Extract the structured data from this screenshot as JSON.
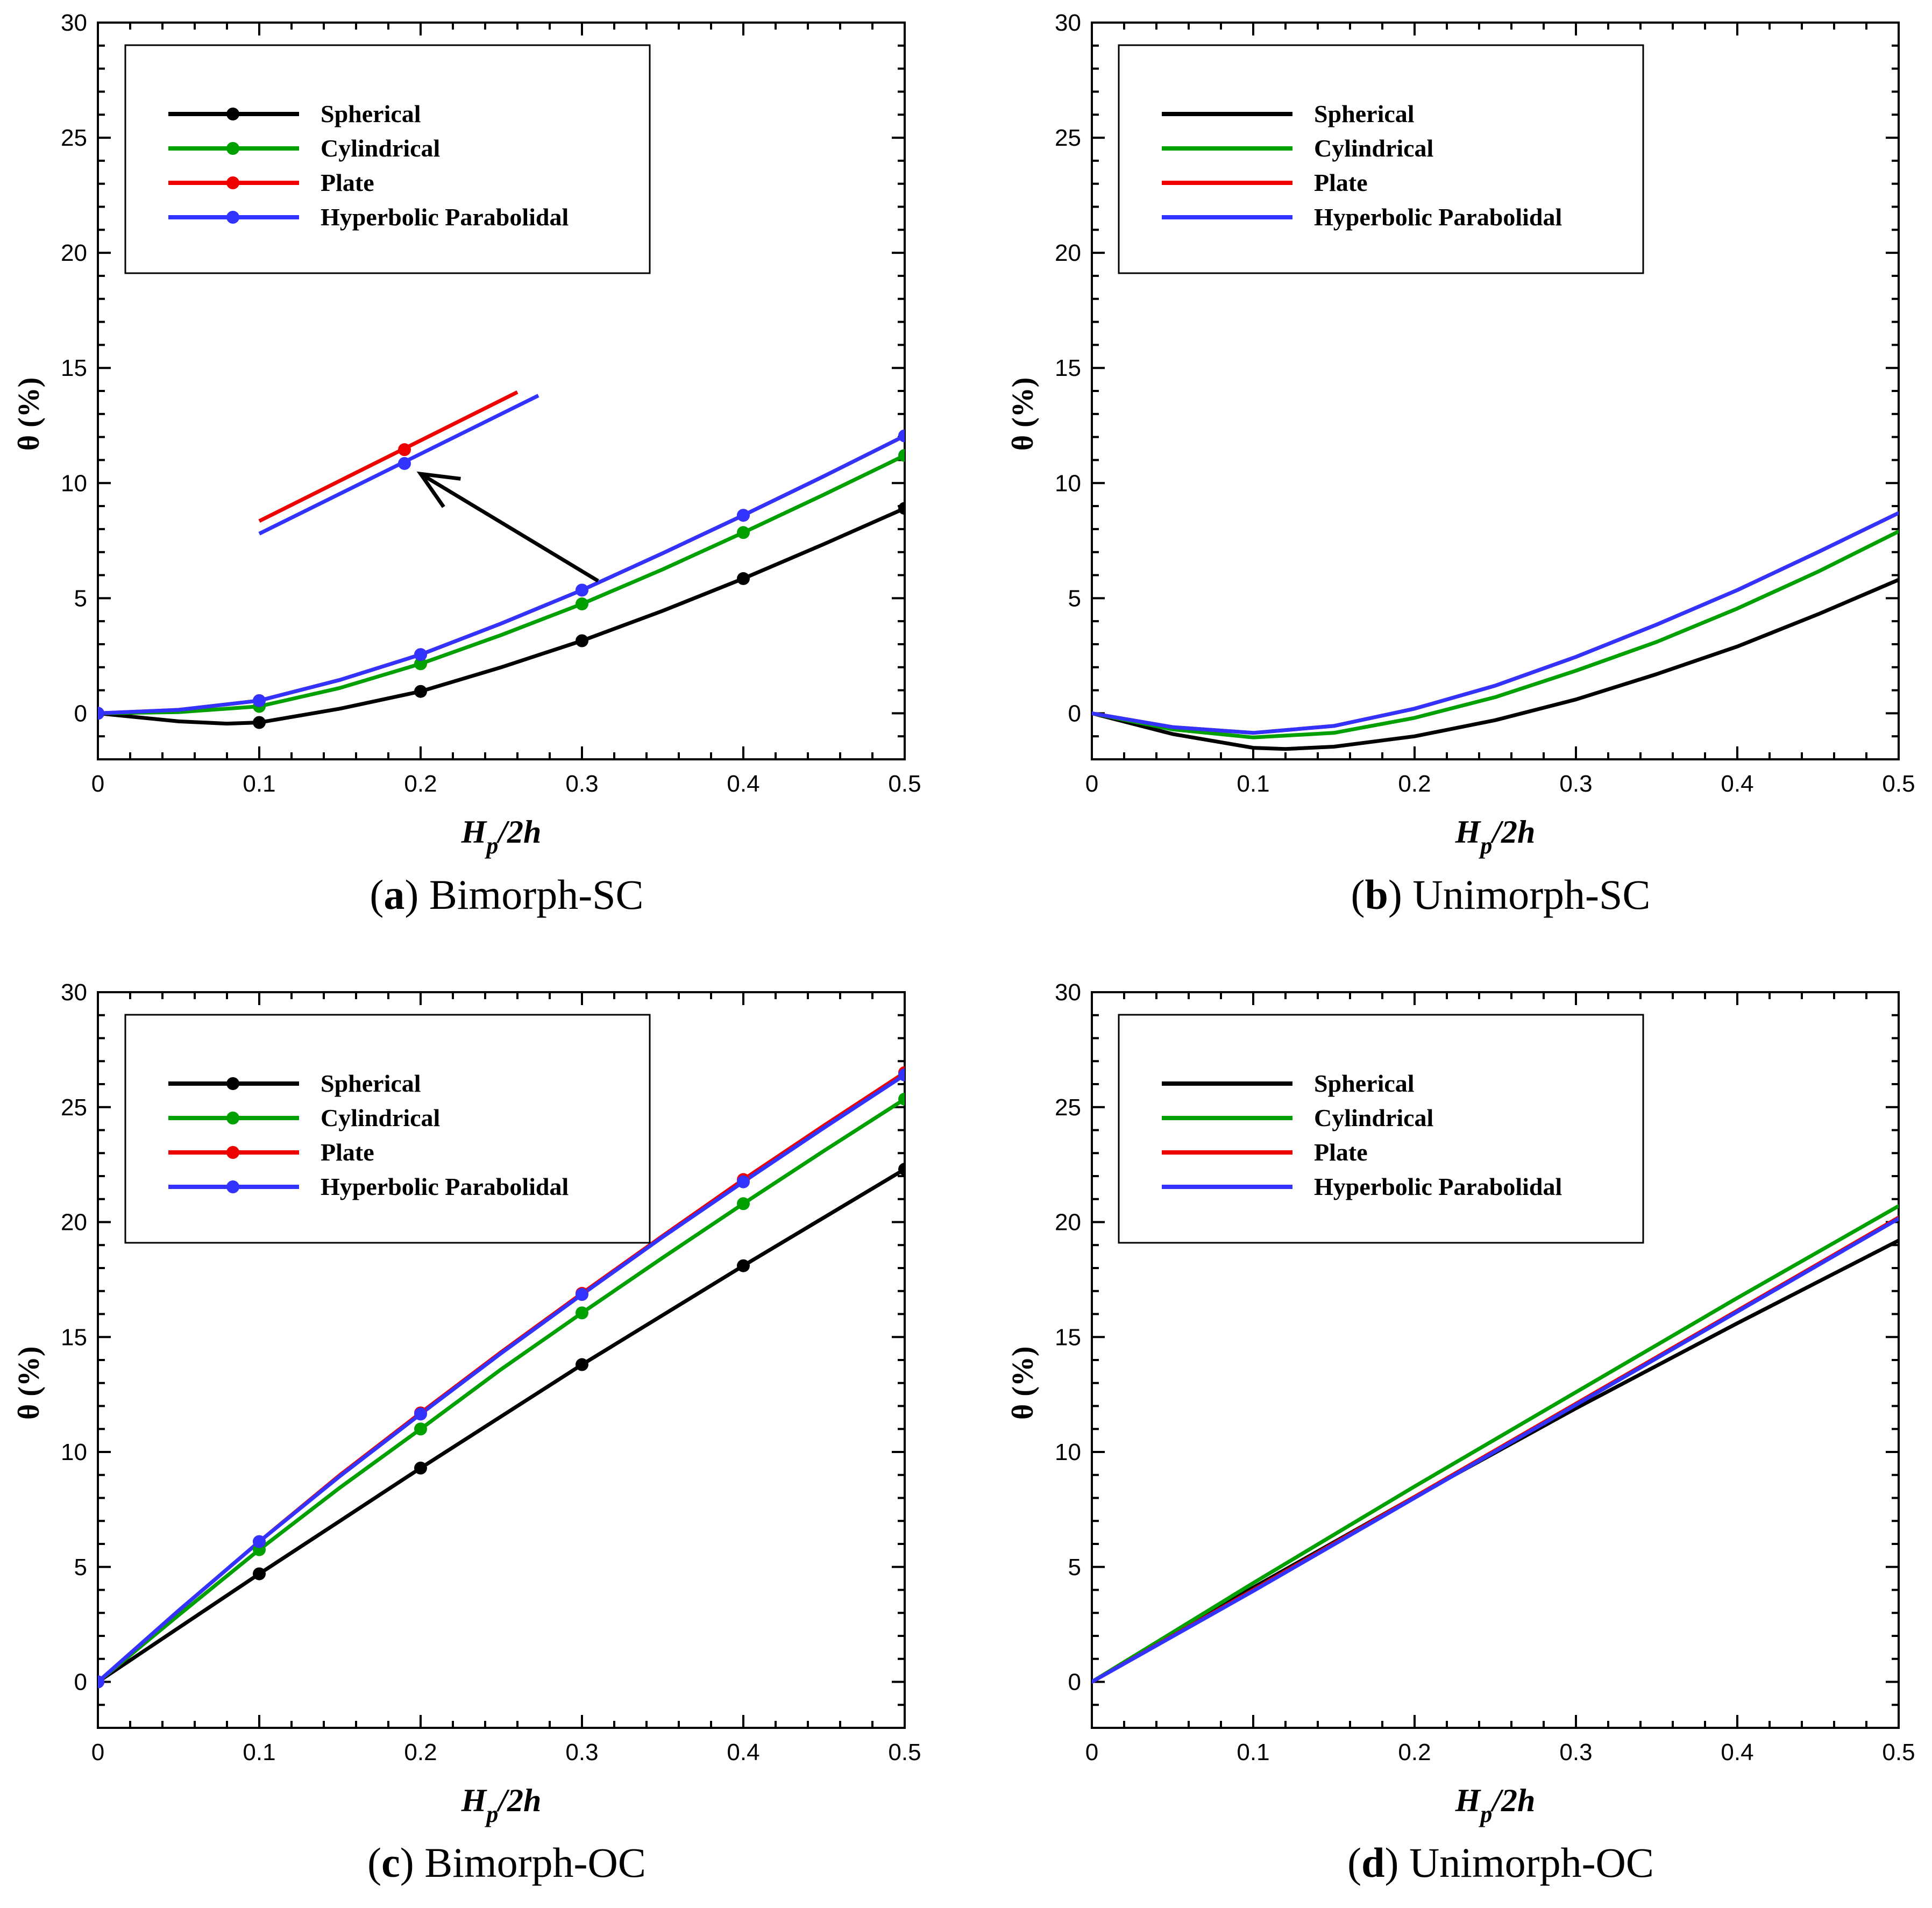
{
  "colors": {
    "Spherical": "#000000",
    "Cylindrical": "#00a000",
    "Plate": "#ee0000",
    "Hyperbolic Parabolidal": "#3333ff"
  },
  "chart_data": [
    {
      "type": "line",
      "caption_letter": "a",
      "caption_text": "Bimorph-SC",
      "xlabel_main": "H",
      "xlabel_sub": "p",
      "xlabel_tail": "/2h",
      "ylabel": "θ (%)",
      "xlim": [
        0,
        0.5
      ],
      "ylim": [
        -2,
        30
      ],
      "xticks": [
        "0",
        "0.1",
        "0.2",
        "0.3",
        "0.4",
        "0.5"
      ],
      "yticks": [
        "0",
        "5",
        "10",
        "15",
        "20",
        "25",
        "30"
      ],
      "markers": true,
      "x": [
        0,
        0.1,
        0.2,
        0.3,
        0.4,
        0.5
      ],
      "series": [
        {
          "name": "Spherical",
          "values": [
            0,
            -0.4,
            0.95,
            3.15,
            5.85,
            8.9
          ],
          "curve": [
            [
              0,
              0
            ],
            [
              0.05,
              -0.35
            ],
            [
              0.08,
              -0.45
            ],
            [
              0.1,
              -0.4
            ],
            [
              0.15,
              0.2
            ],
            [
              0.2,
              0.95
            ],
            [
              0.25,
              2.0
            ],
            [
              0.3,
              3.15
            ],
            [
              0.35,
              4.45
            ],
            [
              0.4,
              5.85
            ],
            [
              0.45,
              7.35
            ],
            [
              0.5,
              8.9
            ]
          ]
        },
        {
          "name": "Cylindrical",
          "values": [
            0,
            0.3,
            2.15,
            4.75,
            7.85,
            11.2
          ],
          "curve": [
            [
              0,
              0
            ],
            [
              0.05,
              0.05
            ],
            [
              0.1,
              0.3
            ],
            [
              0.15,
              1.1
            ],
            [
              0.2,
              2.15
            ],
            [
              0.25,
              3.4
            ],
            [
              0.3,
              4.75
            ],
            [
              0.35,
              6.25
            ],
            [
              0.4,
              7.85
            ],
            [
              0.45,
              9.5
            ],
            [
              0.5,
              11.2
            ]
          ]
        },
        {
          "name": "Plate",
          "values": [
            0,
            0.55,
            2.55,
            5.35,
            8.6,
            12.05
          ],
          "curve": [
            [
              0,
              0
            ],
            [
              0.05,
              0.15
            ],
            [
              0.1,
              0.55
            ],
            [
              0.15,
              1.45
            ],
            [
              0.2,
              2.55
            ],
            [
              0.25,
              3.9
            ],
            [
              0.3,
              5.35
            ],
            [
              0.35,
              6.95
            ],
            [
              0.4,
              8.6
            ],
            [
              0.45,
              10.3
            ],
            [
              0.5,
              12.05
            ]
          ]
        },
        {
          "name": "Hyperbolic Parabolidal",
          "values": [
            0,
            0.55,
            2.55,
            5.35,
            8.6,
            12.05
          ],
          "curve": [
            [
              0,
              0
            ],
            [
              0.05,
              0.15
            ],
            [
              0.1,
              0.55
            ],
            [
              0.15,
              1.45
            ],
            [
              0.2,
              2.55
            ],
            [
              0.25,
              3.9
            ],
            [
              0.3,
              5.35
            ],
            [
              0.35,
              6.95
            ],
            [
              0.4,
              8.6
            ],
            [
              0.45,
              10.3
            ],
            [
              0.5,
              12.05
            ]
          ]
        }
      ],
      "inset": {
        "plate": {
          "line": [
            [
              0.1,
              8.35
            ],
            [
              0.26,
              13.95
            ]
          ],
          "marker": [
            0.19,
            11.45
          ]
        },
        "hyperbolic": {
          "line": [
            [
              0.1,
              7.8
            ],
            [
              0.273,
              13.8
            ]
          ],
          "marker": [
            0.19,
            10.85
          ]
        },
        "arrow_from": [
          0.31,
          5.75
        ],
        "arrow_to": [
          0.2,
          10.4
        ]
      }
    },
    {
      "type": "line",
      "caption_letter": "b",
      "caption_text": "Unimorph-SC",
      "xlabel_main": "H",
      "xlabel_sub": "p",
      "xlabel_tail": "/2h",
      "ylabel": "θ (%)",
      "xlim": [
        0,
        0.5
      ],
      "ylim": [
        -2,
        30
      ],
      "xticks": [
        "0",
        "0.1",
        "0.2",
        "0.3",
        "0.4",
        "0.5"
      ],
      "yticks": [
        "0",
        "5",
        "10",
        "15",
        "20",
        "25",
        "30"
      ],
      "markers": false,
      "series": [
        {
          "name": "Spherical",
          "curve": [
            [
              0,
              0
            ],
            [
              0.05,
              -0.9
            ],
            [
              0.1,
              -1.5
            ],
            [
              0.12,
              -1.55
            ],
            [
              0.15,
              -1.45
            ],
            [
              0.2,
              -1.0
            ],
            [
              0.25,
              -0.3
            ],
            [
              0.3,
              0.6
            ],
            [
              0.35,
              1.7
            ],
            [
              0.4,
              2.9
            ],
            [
              0.45,
              4.3
            ],
            [
              0.5,
              5.8
            ]
          ]
        },
        {
          "name": "Cylindrical",
          "curve": [
            [
              0,
              0
            ],
            [
              0.05,
              -0.7
            ],
            [
              0.1,
              -1.05
            ],
            [
              0.15,
              -0.85
            ],
            [
              0.2,
              -0.2
            ],
            [
              0.25,
              0.7
            ],
            [
              0.3,
              1.85
            ],
            [
              0.35,
              3.1
            ],
            [
              0.4,
              4.55
            ],
            [
              0.45,
              6.15
            ],
            [
              0.5,
              7.9
            ]
          ]
        },
        {
          "name": "Plate",
          "curve": [
            [
              0,
              0
            ],
            [
              0.05,
              -0.6
            ],
            [
              0.1,
              -0.85
            ],
            [
              0.15,
              -0.55
            ],
            [
              0.2,
              0.2
            ],
            [
              0.25,
              1.2
            ],
            [
              0.3,
              2.45
            ],
            [
              0.35,
              3.85
            ],
            [
              0.4,
              5.35
            ],
            [
              0.45,
              7.0
            ],
            [
              0.5,
              8.7
            ]
          ]
        },
        {
          "name": "Hyperbolic Parabolidal",
          "curve": [
            [
              0,
              0
            ],
            [
              0.05,
              -0.6
            ],
            [
              0.1,
              -0.85
            ],
            [
              0.15,
              -0.55
            ],
            [
              0.2,
              0.2
            ],
            [
              0.25,
              1.2
            ],
            [
              0.3,
              2.45
            ],
            [
              0.35,
              3.85
            ],
            [
              0.4,
              5.35
            ],
            [
              0.45,
              7.0
            ],
            [
              0.5,
              8.7
            ]
          ]
        }
      ]
    },
    {
      "type": "line",
      "caption_letter": "c",
      "caption_text": "Bimorph-OC",
      "xlabel_main": "H",
      "xlabel_sub": "p",
      "xlabel_tail": "/2h",
      "ylabel": "θ (%)",
      "xlim": [
        0,
        0.5
      ],
      "ylim": [
        -2,
        30
      ],
      "xticks": [
        "0",
        "0.1",
        "0.2",
        "0.3",
        "0.4",
        "0.5"
      ],
      "yticks": [
        "0",
        "5",
        "10",
        "15",
        "20",
        "25",
        "30"
      ],
      "markers": true,
      "x": [
        0,
        0.1,
        0.2,
        0.3,
        0.4,
        0.5
      ],
      "series": [
        {
          "name": "Spherical",
          "values": [
            0,
            4.7,
            9.3,
            13.8,
            18.1,
            22.3
          ],
          "curve": [
            [
              0,
              0
            ],
            [
              0.1,
              4.7
            ],
            [
              0.2,
              9.3
            ],
            [
              0.3,
              13.8
            ],
            [
              0.4,
              18.1
            ],
            [
              0.5,
              22.3
            ]
          ]
        },
        {
          "name": "Cylindrical",
          "values": [
            0,
            5.75,
            11.0,
            16.05,
            20.8,
            25.35
          ],
          "curve": [
            [
              0,
              0
            ],
            [
              0.05,
              2.9
            ],
            [
              0.1,
              5.75
            ],
            [
              0.15,
              8.45
            ],
            [
              0.2,
              11.0
            ],
            [
              0.25,
              13.6
            ],
            [
              0.3,
              16.05
            ],
            [
              0.35,
              18.45
            ],
            [
              0.4,
              20.8
            ],
            [
              0.45,
              23.1
            ],
            [
              0.5,
              25.35
            ]
          ]
        },
        {
          "name": "Plate",
          "values": [
            0,
            6.1,
            11.7,
            16.9,
            21.85,
            26.5
          ],
          "curve": [
            [
              0,
              0
            ],
            [
              0.05,
              3.1
            ],
            [
              0.1,
              6.1
            ],
            [
              0.15,
              9.0
            ],
            [
              0.2,
              11.7
            ],
            [
              0.25,
              14.35
            ],
            [
              0.3,
              16.9
            ],
            [
              0.35,
              19.4
            ],
            [
              0.4,
              21.85
            ],
            [
              0.45,
              24.2
            ],
            [
              0.5,
              26.5
            ]
          ]
        },
        {
          "name": "Hyperbolic Parabolidal",
          "values": [
            0,
            6.1,
            11.65,
            16.85,
            21.75,
            26.4
          ],
          "curve": [
            [
              0,
              0
            ],
            [
              0.05,
              3.1
            ],
            [
              0.1,
              6.1
            ],
            [
              0.15,
              8.95
            ],
            [
              0.2,
              11.65
            ],
            [
              0.25,
              14.3
            ],
            [
              0.3,
              16.85
            ],
            [
              0.35,
              19.35
            ],
            [
              0.4,
              21.75
            ],
            [
              0.45,
              24.1
            ],
            [
              0.5,
              26.4
            ]
          ]
        }
      ]
    },
    {
      "type": "line",
      "caption_letter": "d",
      "caption_text": "Unimorph-OC",
      "xlabel_main": "H",
      "xlabel_sub": "p",
      "xlabel_tail": "/2h",
      "ylabel": "θ (%)",
      "xlim": [
        0,
        0.5
      ],
      "ylim": [
        -2,
        30
      ],
      "xticks": [
        "0",
        "0.1",
        "0.2",
        "0.3",
        "0.4",
        "0.5"
      ],
      "yticks": [
        "0",
        "5",
        "10",
        "15",
        "20",
        "25",
        "30"
      ],
      "markers": false,
      "series": [
        {
          "name": "Spherical",
          "curve": [
            [
              0,
              0
            ],
            [
              0.1,
              4.1
            ],
            [
              0.2,
              8.05
            ],
            [
              0.3,
              11.9
            ],
            [
              0.4,
              15.6
            ],
            [
              0.5,
              19.2
            ]
          ]
        },
        {
          "name": "Cylindrical",
          "curve": [
            [
              0,
              0
            ],
            [
              0.1,
              4.3
            ],
            [
              0.2,
              8.5
            ],
            [
              0.3,
              12.6
            ],
            [
              0.4,
              16.7
            ],
            [
              0.5,
              20.7
            ]
          ]
        },
        {
          "name": "Plate",
          "curve": [
            [
              0,
              0
            ],
            [
              0.1,
              4.0
            ],
            [
              0.2,
              8.05
            ],
            [
              0.3,
              12.1
            ],
            [
              0.4,
              16.15
            ],
            [
              0.5,
              20.2
            ]
          ]
        },
        {
          "name": "Hyperbolic Parabolidal",
          "curve": [
            [
              0,
              0
            ],
            [
              0.1,
              3.95
            ],
            [
              0.2,
              8.0
            ],
            [
              0.3,
              12.05
            ],
            [
              0.4,
              16.1
            ],
            [
              0.5,
              20.15
            ]
          ]
        }
      ]
    }
  ]
}
